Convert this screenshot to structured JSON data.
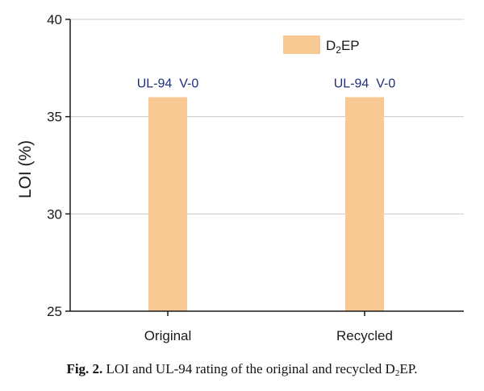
{
  "chart_data": {
    "type": "bar",
    "categories": [
      "Original",
      "Recycled"
    ],
    "series": [
      {
        "name_main": "D",
        "name_sub": "2",
        "name_tail": "EP",
        "values": [
          36,
          36
        ]
      }
    ],
    "annotations": [
      "UL-94  V-0",
      "UL-94  V-0"
    ],
    "title": "",
    "xlabel": "",
    "ylabel": "LOI (%)",
    "ylim": [
      25,
      40
    ],
    "yticks": [
      25,
      30,
      35,
      40
    ],
    "grid": true,
    "legend_position": "top-right",
    "bar_color": "#f9c994",
    "annotation_color": "#1f2f7a"
  },
  "caption": {
    "label": "Fig. 2.",
    "text_before": " LOI and UL-94 rating of the original and recycled D",
    "text_sub": "2",
    "text_after": "EP."
  }
}
